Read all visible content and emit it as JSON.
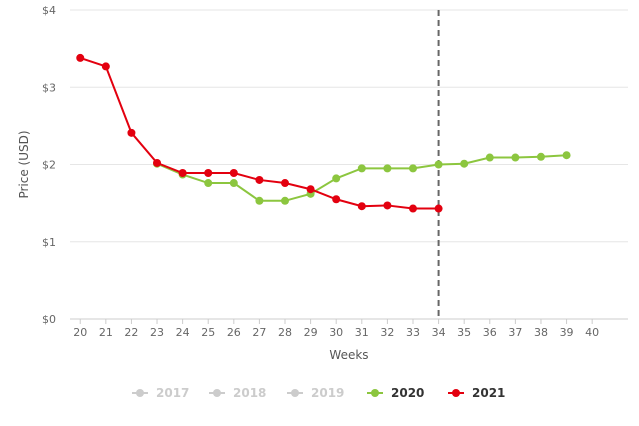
{
  "chart_data": {
    "type": "line",
    "title": "",
    "xlabel": "Weeks",
    "ylabel": "Price (USD)",
    "x": [
      20,
      21,
      22,
      23,
      24,
      25,
      26,
      27,
      28,
      29,
      30,
      31,
      32,
      33,
      34,
      35,
      36,
      37,
      38,
      39,
      40
    ],
    "x_tick_labels": [
      "20",
      "21",
      "22",
      "23",
      "24",
      "25",
      "26",
      "27",
      "28",
      "29",
      "30",
      "31",
      "32",
      "33",
      "34",
      "35",
      "36",
      "37",
      "38",
      "39",
      "40"
    ],
    "xlim": [
      19.6,
      41.4
    ],
    "ylim": [
      0,
      4
    ],
    "y_ticks": [
      0,
      1,
      2,
      3,
      4
    ],
    "y_tick_labels": [
      "$0",
      "$1",
      "$2",
      "$3",
      "$4"
    ],
    "grid": {
      "horizontal": true,
      "vertical": false
    },
    "reference_line": {
      "x": 34,
      "style": "dashed",
      "color": "#666666"
    },
    "legend_position": "bottom",
    "series": [
      {
        "name": "2017",
        "visible": false,
        "color": "#cccccc",
        "x": [],
        "values": []
      },
      {
        "name": "2018",
        "visible": false,
        "color": "#cccccc",
        "x": [],
        "values": []
      },
      {
        "name": "2019",
        "visible": false,
        "color": "#cccccc",
        "x": [],
        "values": []
      },
      {
        "name": "2020",
        "visible": true,
        "color": "#8cc63f",
        "x": [
          23,
          24,
          25,
          26,
          27,
          28,
          29,
          30,
          31,
          32,
          33,
          34,
          35,
          36,
          37,
          38,
          39
        ],
        "values": [
          2.01,
          1.87,
          1.76,
          1.76,
          1.53,
          1.53,
          1.62,
          1.82,
          1.95,
          1.95,
          1.95,
          2.0,
          2.01,
          2.09,
          2.09,
          2.1,
          2.12
        ]
      },
      {
        "name": "2021",
        "visible": true,
        "color": "#e3000f",
        "x": [
          20,
          21,
          22,
          23,
          24,
          25,
          26,
          27,
          28,
          29,
          30,
          31,
          32,
          33,
          34
        ],
        "values": [
          3.38,
          3.27,
          2.41,
          2.02,
          1.89,
          1.89,
          1.89,
          1.8,
          1.76,
          1.68,
          1.55,
          1.46,
          1.47,
          1.43,
          1.43
        ]
      }
    ]
  }
}
